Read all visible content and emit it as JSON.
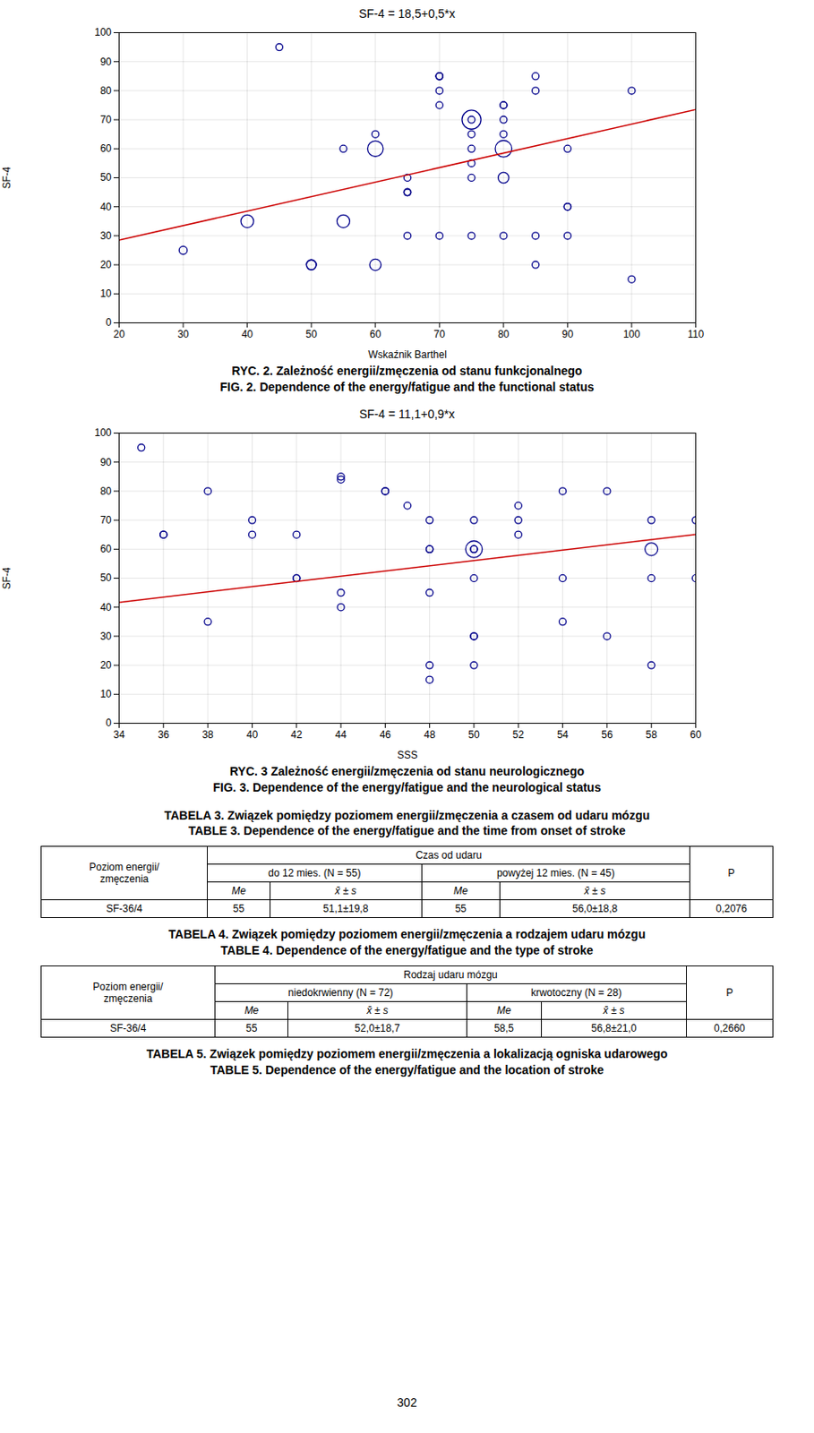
{
  "chart_data": [
    {
      "type": "scatter",
      "title": "SF-4 = 18,5+0,5*x",
      "xlabel": "Wskaźnik Barthel",
      "ylabel": "SF-4",
      "xlim": [
        20,
        110
      ],
      "ylim": [
        0,
        100
      ],
      "xticks": [
        20,
        30,
        40,
        50,
        60,
        70,
        80,
        90,
        100,
        110
      ],
      "yticks": [
        0,
        10,
        20,
        30,
        40,
        50,
        60,
        70,
        80,
        90,
        100
      ],
      "grid": true,
      "series": [
        {
          "type": "scatter",
          "marker": "open circle",
          "color": "#00008B",
          "x": [
            30,
            40,
            45,
            50,
            50,
            55,
            55,
            60,
            60,
            60,
            65,
            65,
            65,
            65,
            65,
            70,
            70,
            70,
            70,
            70,
            70,
            75,
            75,
            75,
            75,
            75,
            75,
            75,
            80,
            80,
            80,
            80,
            80,
            80,
            80,
            85,
            85,
            85,
            85,
            90,
            90,
            90,
            90,
            100,
            100
          ],
          "values": [
            25,
            35,
            95,
            20,
            20,
            35,
            60,
            60,
            65,
            20,
            50,
            45,
            45,
            45,
            30,
            85,
            85,
            85,
            80,
            75,
            30,
            70,
            70,
            65,
            60,
            55,
            50,
            30,
            75,
            75,
            70,
            65,
            60,
            50,
            30,
            85,
            80,
            30,
            20,
            60,
            40,
            40,
            30,
            80,
            15
          ],
          "sizes": [
            40,
            100,
            30,
            60,
            60,
            100,
            30,
            150,
            30,
            80,
            30,
            30,
            30,
            30,
            30,
            30,
            30,
            30,
            30,
            30,
            30,
            220,
            30,
            30,
            30,
            30,
            30,
            30,
            30,
            30,
            30,
            30,
            170,
            70,
            30,
            30,
            30,
            30,
            30,
            30,
            30,
            30,
            30,
            30,
            30
          ]
        },
        {
          "type": "line",
          "line_style": "solid",
          "color": "#CC0000",
          "x": [
            20,
            110
          ],
          "values": [
            28.5,
            73.5
          ]
        }
      ],
      "caption": [
        "RYC. 2. Zależność energii/zmęczenia od stanu funkcjonalnego",
        "FIG. 2. Dependence of the energy/fatigue and the functional status"
      ]
    },
    {
      "type": "scatter",
      "title": "SF-4 = 11,1+0,9*x",
      "xlabel": "SSS",
      "ylabel": "SF-4",
      "xlim": [
        34,
        60
      ],
      "ylim": [
        0,
        100
      ],
      "xticks": [
        34,
        36,
        38,
        40,
        42,
        44,
        46,
        48,
        50,
        52,
        54,
        56,
        58,
        60
      ],
      "yticks": [
        0,
        10,
        20,
        30,
        40,
        50,
        60,
        70,
        80,
        90,
        100
      ],
      "grid": true,
      "series": [
        {
          "type": "scatter",
          "marker": "open circle",
          "color": "#00008B",
          "x": [
            35,
            36,
            36,
            38,
            38,
            40,
            40,
            42,
            42,
            42,
            44,
            44,
            44,
            44,
            46,
            46,
            47,
            48,
            48,
            48,
            48,
            48,
            48,
            50,
            50,
            50,
            50,
            50,
            50,
            50,
            50,
            52,
            52,
            52,
            54,
            54,
            54,
            56,
            56,
            58,
            58,
            58,
            58,
            60,
            60
          ],
          "values": [
            95,
            65,
            65,
            80,
            35,
            70,
            65,
            50,
            50,
            65,
            85,
            84,
            45,
            40,
            80,
            80,
            75,
            70,
            60,
            60,
            45,
            20,
            15,
            70,
            60,
            60,
            60,
            50,
            30,
            30,
            20,
            75,
            70,
            65,
            80,
            50,
            35,
            80,
            30,
            70,
            60,
            50,
            20,
            70,
            50
          ],
          "sizes": [
            30,
            30,
            30,
            30,
            30,
            30,
            30,
            30,
            30,
            30,
            30,
            30,
            30,
            30,
            30,
            30,
            30,
            30,
            30,
            30,
            30,
            30,
            30,
            30,
            170,
            30,
            30,
            30,
            30,
            30,
            30,
            30,
            30,
            30,
            30,
            30,
            30,
            30,
            30,
            30,
            100,
            30,
            30,
            30,
            30
          ]
        },
        {
          "type": "line",
          "line_style": "solid",
          "color": "#CC0000",
          "x": [
            34,
            60
          ],
          "values": [
            41.7,
            65.1
          ]
        }
      ],
      "caption": [
        "RYC. 3 Zależność energii/zmęczenia od stanu neurologicznego",
        "FIG. 3. Dependence of the energy/fatigue and the neurological status"
      ]
    }
  ],
  "tables": [
    {
      "title": [
        "TABELA 3. Związek pomiędzy poziomem energii/zmęczenia a czasem od udaru mózgu",
        "TABLE 3. Dependence of the energy/fatigue and the time from onset of stroke"
      ],
      "row_label": [
        "Poziom energii/",
        "zmęczenia"
      ],
      "col_header": "Czas od udaru",
      "groups": [
        "do 12 mies. (N = 55)",
        "powyżej 12 mies. (N = 45)"
      ],
      "p_header": "P",
      "sub_headers": [
        "Me",
        "x̄ ± s",
        "Me",
        "x̄ ± s"
      ],
      "rows": [
        {
          "label": "SF-36/4",
          "cells": [
            "55",
            "51,1±19,8",
            "55",
            "56,0±18,8"
          ],
          "p": "0,2076"
        }
      ]
    },
    {
      "title": [
        "TABELA 4. Związek pomiędzy poziomem energii/zmęczenia a rodzajem udaru mózgu",
        "TABLE 4. Dependence of the energy/fatigue and the type of stroke"
      ],
      "row_label": [
        "Poziom energii/",
        "zmęczenia"
      ],
      "col_header": "Rodzaj udaru mózgu",
      "groups": [
        "niedokrwienny (N = 72)",
        "krwotoczny (N = 28)"
      ],
      "p_header": "P",
      "sub_headers": [
        "Me",
        "x̄ ± s",
        "Me",
        "x̄ ± s"
      ],
      "rows": [
        {
          "label": "SF-36/4",
          "cells": [
            "55",
            "52,0±18,7",
            "58,5",
            "56,8±21,0"
          ],
          "p": "0,2660"
        }
      ]
    },
    {
      "title": [
        "TABELA 5. Związek pomiędzy poziomem energii/zmęczenia a lokalizacją ogniska udarowego",
        "TABLE 5. Dependence of the energy/fatigue and the location of stroke"
      ]
    }
  ],
  "page_number": "302"
}
